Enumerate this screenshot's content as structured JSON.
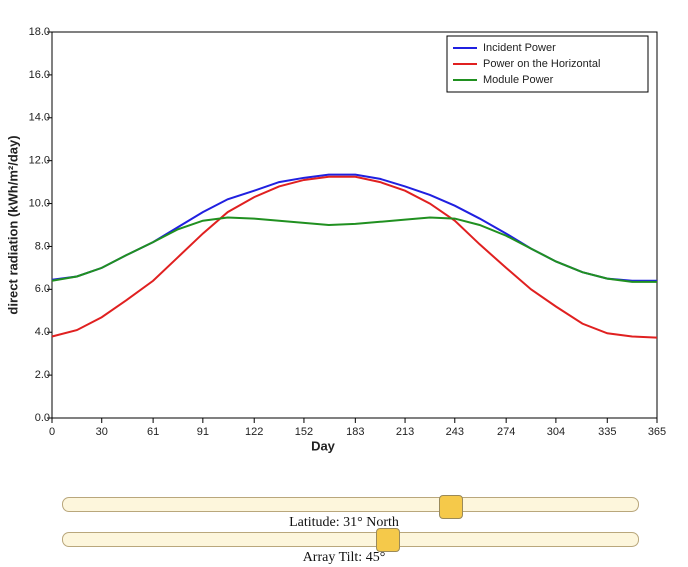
{
  "chart_data": {
    "type": "line",
    "x_label": "Day",
    "y_label": "direct radiation (kWh/m²/day)",
    "x": [
      0,
      15,
      30,
      45,
      61,
      76,
      91,
      106,
      122,
      137,
      152,
      167,
      183,
      198,
      213,
      228,
      243,
      258,
      274,
      289,
      304,
      320,
      335,
      350,
      365
    ],
    "series": [
      {
        "name": "Incident Power",
        "color": "#2020e0",
        "values": [
          6.45,
          6.6,
          7.0,
          7.6,
          8.2,
          8.9,
          9.6,
          10.2,
          10.6,
          11.0,
          11.2,
          11.35,
          11.35,
          11.15,
          10.8,
          10.4,
          9.9,
          9.3,
          8.6,
          7.9,
          7.3,
          6.8,
          6.5,
          6.4,
          6.4
        ]
      },
      {
        "name": "Power on the Horizontal",
        "color": "#e02020",
        "values": [
          3.8,
          4.1,
          4.7,
          5.5,
          6.4,
          7.5,
          8.6,
          9.6,
          10.3,
          10.8,
          11.1,
          11.25,
          11.25,
          11.0,
          10.6,
          10.0,
          9.2,
          8.1,
          7.0,
          6.0,
          5.2,
          4.4,
          3.95,
          3.8,
          3.75
        ]
      },
      {
        "name": "Module Power",
        "color": "#209020",
        "values": [
          6.4,
          6.6,
          7.0,
          7.6,
          8.2,
          8.8,
          9.2,
          9.35,
          9.3,
          9.2,
          9.1,
          9.0,
          9.05,
          9.15,
          9.25,
          9.35,
          9.3,
          9.0,
          8.5,
          7.9,
          7.3,
          6.8,
          6.5,
          6.35,
          6.35
        ]
      }
    ],
    "xlim": [
      0,
      365
    ],
    "xticks": [
      0,
      30,
      61,
      91,
      122,
      152,
      183,
      213,
      243,
      274,
      304,
      335,
      365
    ],
    "ylim": [
      0,
      18
    ],
    "yticks": [
      {
        "value": 0,
        "label": "0.0"
      },
      {
        "value": 2,
        "label": "2.0"
      },
      {
        "value": 4,
        "label": "4.0"
      },
      {
        "value": 6,
        "label": "6.0"
      },
      {
        "value": 8,
        "label": "8.0"
      },
      {
        "value": 10,
        "label": "10.0"
      },
      {
        "value": 12,
        "label": "12.0"
      },
      {
        "value": 14,
        "label": "14.0"
      },
      {
        "value": 16,
        "label": "16.0"
      },
      {
        "value": 18,
        "label": "18.0"
      }
    ],
    "legend": "upper right"
  },
  "controls": {
    "latitude_label": "Latitude: 31° North",
    "tilt_label": "Array Tilt: 45°"
  }
}
